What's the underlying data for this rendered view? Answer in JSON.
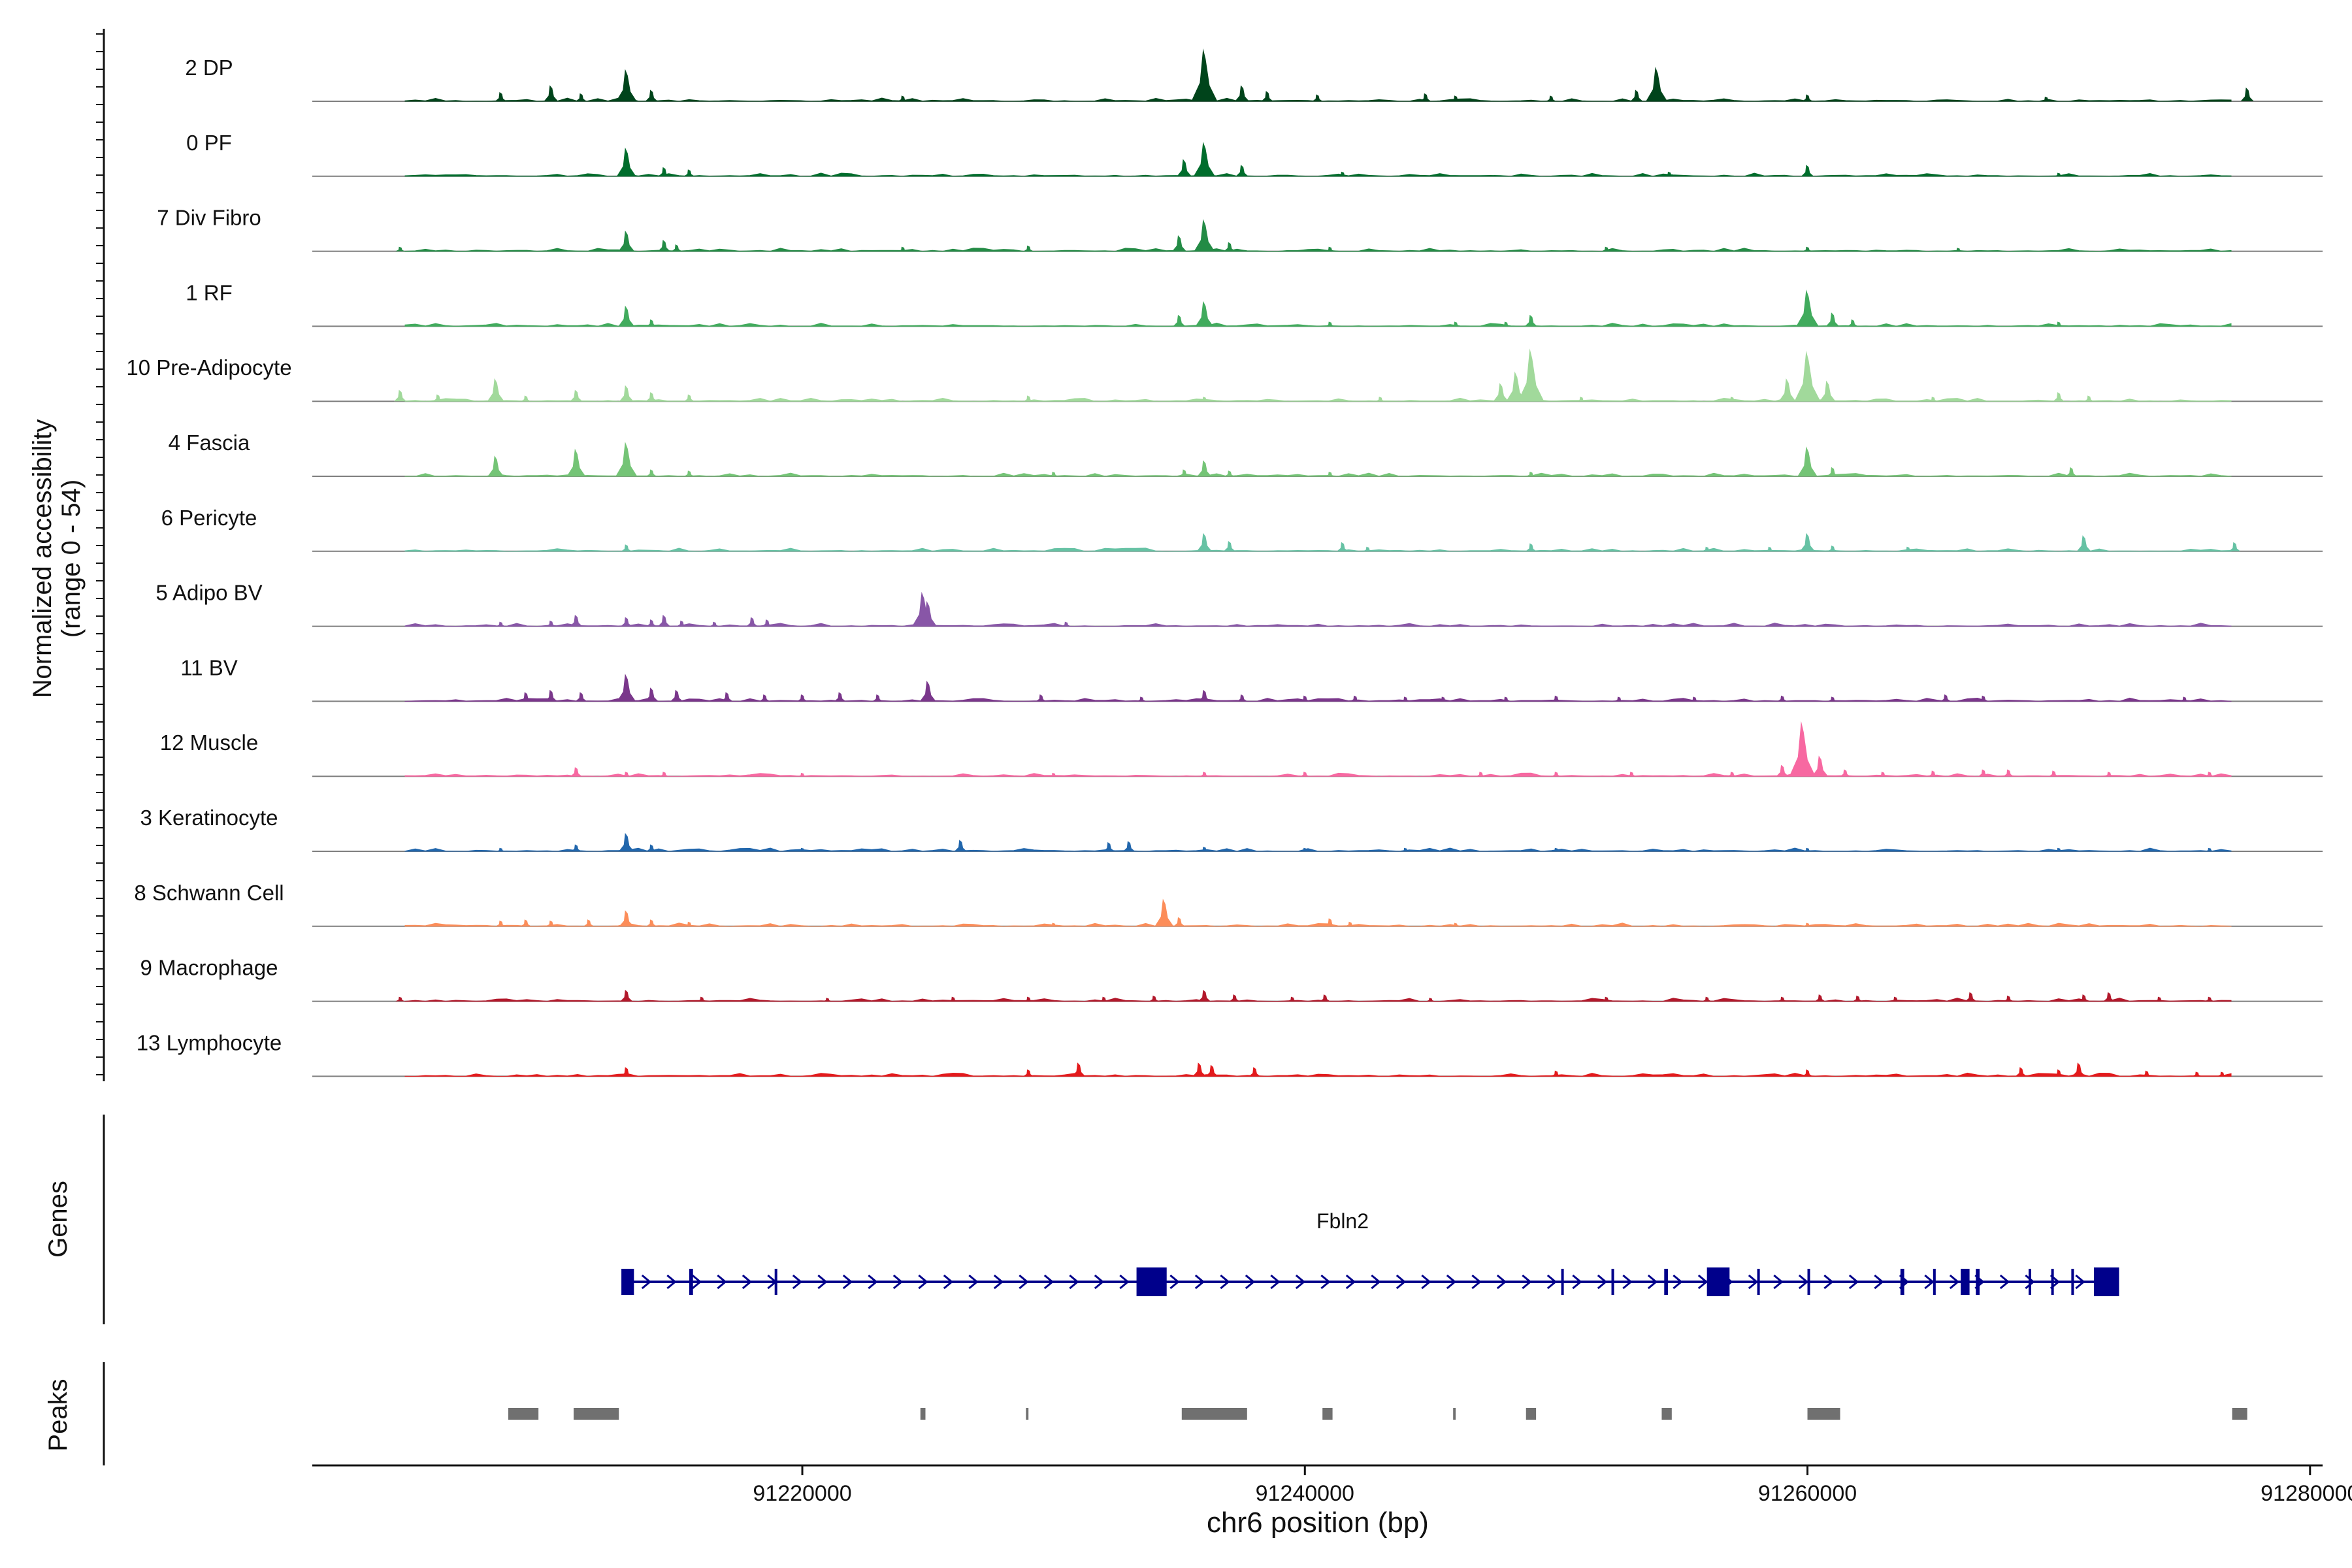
{
  "chart_data": {
    "type": "area",
    "title": "",
    "chromosome": "chr6",
    "xlim": [
      91200500,
      91280500
    ],
    "xlabel": "chr6 position (bp)",
    "x_ticks": [
      91220000,
      91240000,
      91260000,
      91280000
    ],
    "x_tick_labels": [
      "91220000",
      "91240000",
      "91260000",
      "91280000"
    ],
    "ylabel_line1": "Normalized accessibility",
    "ylabel_line2": "(range 0 - 54)",
    "y_range": [
      0,
      54
    ],
    "genes_label": "Genes",
    "peaks_label": "Peaks",
    "tracks": [
      {
        "name": "2 DP",
        "color": "#00441b",
        "peaks": [
          [
            91208000,
            8
          ],
          [
            91210000,
            14
          ],
          [
            91211200,
            7
          ],
          [
            91213000,
            28
          ],
          [
            91214000,
            10
          ],
          [
            91224000,
            5
          ],
          [
            91236000,
            46
          ],
          [
            91237500,
            14
          ],
          [
            91238500,
            9
          ],
          [
            91240500,
            6
          ],
          [
            91244800,
            7
          ],
          [
            91246000,
            5
          ],
          [
            91249800,
            5
          ],
          [
            91254000,
            30
          ],
          [
            91253200,
            10
          ],
          [
            91260000,
            6
          ],
          [
            91269500,
            4
          ],
          [
            91277500,
            12
          ]
        ]
      },
      {
        "name": "0 PF",
        "color": "#006d2c",
        "peaks": [
          [
            91213000,
            25
          ],
          [
            91214500,
            8
          ],
          [
            91215500,
            6
          ],
          [
            91236000,
            30
          ],
          [
            91235200,
            15
          ],
          [
            91237500,
            10
          ],
          [
            91241500,
            4
          ],
          [
            91254500,
            4
          ],
          [
            91260000,
            10
          ],
          [
            91270000,
            3
          ]
        ]
      },
      {
        "name": "7 Div Fibro",
        "color": "#238b45",
        "peaks": [
          [
            91204000,
            4
          ],
          [
            91213000,
            18
          ],
          [
            91214500,
            10
          ],
          [
            91215000,
            6
          ],
          [
            91224000,
            4
          ],
          [
            91229000,
            5
          ],
          [
            91236000,
            28
          ],
          [
            91235000,
            14
          ],
          [
            91237000,
            8
          ],
          [
            91241000,
            4
          ],
          [
            91252000,
            4
          ],
          [
            91260000,
            4
          ],
          [
            91266000,
            3
          ]
        ]
      },
      {
        "name": "1 RF",
        "color": "#41ab5d",
        "peaks": [
          [
            91213000,
            18
          ],
          [
            91214000,
            6
          ],
          [
            91236000,
            22
          ],
          [
            91235000,
            10
          ],
          [
            91241000,
            4
          ],
          [
            91246000,
            4
          ],
          [
            91249000,
            10
          ],
          [
            91248000,
            4
          ],
          [
            91260000,
            32
          ],
          [
            91261000,
            12
          ],
          [
            91261800,
            6
          ],
          [
            91270000,
            4
          ]
        ]
      },
      {
        "name": "10 Pre-Adipocyte",
        "color": "#a1d99b",
        "peaks": [
          [
            91204000,
            10
          ],
          [
            91205500,
            6
          ],
          [
            91207800,
            20
          ],
          [
            91209000,
            5
          ],
          [
            91211000,
            10
          ],
          [
            91213000,
            14
          ],
          [
            91214000,
            8
          ],
          [
            91215500,
            6
          ],
          [
            91229000,
            5
          ],
          [
            91236000,
            4
          ],
          [
            91243000,
            4
          ],
          [
            91247800,
            16
          ],
          [
            91249000,
            46
          ],
          [
            91248400,
            26
          ],
          [
            91251000,
            4
          ],
          [
            91257000,
            4
          ],
          [
            91260000,
            44
          ],
          [
            91259200,
            20
          ],
          [
            91260800,
            18
          ],
          [
            91265000,
            4
          ],
          [
            91270000,
            8
          ],
          [
            91271200,
            5
          ]
        ]
      },
      {
        "name": "4 Fascia",
        "color": "#74c476",
        "peaks": [
          [
            91207800,
            18
          ],
          [
            91211000,
            24
          ],
          [
            91213000,
            30
          ],
          [
            91214000,
            6
          ],
          [
            91215500,
            5
          ],
          [
            91230000,
            4
          ],
          [
            91236000,
            14
          ],
          [
            91235200,
            6
          ],
          [
            91237000,
            5
          ],
          [
            91241000,
            4
          ],
          [
            91249000,
            4
          ],
          [
            91260000,
            26
          ],
          [
            91261000,
            8
          ],
          [
            91270500,
            8
          ]
        ]
      },
      {
        "name": "6 Pericyte",
        "color": "#66c2a4",
        "peaks": [
          [
            91213000,
            6
          ],
          [
            91236000,
            16
          ],
          [
            91237000,
            9
          ],
          [
            91241500,
            8
          ],
          [
            91242500,
            4
          ],
          [
            91249000,
            7
          ],
          [
            91256000,
            4
          ],
          [
            91258500,
            4
          ],
          [
            91260000,
            16
          ],
          [
            91261000,
            5
          ],
          [
            91264000,
            4
          ],
          [
            91271000,
            14
          ],
          [
            91277000,
            8
          ]
        ]
      },
      {
        "name": "5 Adipo BV",
        "color": "#8856a7",
        "peaks": [
          [
            91208000,
            4
          ],
          [
            91210000,
            5
          ],
          [
            91211000,
            10
          ],
          [
            91213000,
            8
          ],
          [
            91214000,
            6
          ],
          [
            91214500,
            10
          ],
          [
            91215200,
            5
          ],
          [
            91216500,
            4
          ],
          [
            91218000,
            8
          ],
          [
            91218600,
            6
          ],
          [
            91225000,
            22
          ],
          [
            91224800,
            30
          ],
          [
            91230500,
            4
          ]
        ]
      },
      {
        "name": "11 BV",
        "color": "#7a378b",
        "peaks": [
          [
            91209000,
            8
          ],
          [
            91210000,
            10
          ],
          [
            91211200,
            8
          ],
          [
            91213000,
            24
          ],
          [
            91214000,
            12
          ],
          [
            91215000,
            10
          ],
          [
            91217000,
            8
          ],
          [
            91218500,
            6
          ],
          [
            91220000,
            6
          ],
          [
            91221500,
            8
          ],
          [
            91223000,
            6
          ],
          [
            91225000,
            18
          ],
          [
            91229500,
            6
          ],
          [
            91233500,
            4
          ],
          [
            91236000,
            10
          ],
          [
            91237500,
            6
          ],
          [
            91240000,
            5
          ],
          [
            91242000,
            5
          ],
          [
            91244000,
            4
          ],
          [
            91245500,
            4
          ],
          [
            91248000,
            4
          ],
          [
            91250000,
            5
          ],
          [
            91252500,
            4
          ],
          [
            91255500,
            4
          ],
          [
            91259000,
            5
          ],
          [
            91261000,
            4
          ],
          [
            91265500,
            6
          ],
          [
            91267000,
            5
          ],
          [
            91275000,
            4
          ]
        ]
      },
      {
        "name": "12 Muscle",
        "color": "#f768a1",
        "peaks": [
          [
            91211000,
            8
          ],
          [
            91213000,
            4
          ],
          [
            91214500,
            4
          ],
          [
            91220000,
            3
          ],
          [
            91230000,
            3
          ],
          [
            91236000,
            4
          ],
          [
            91240000,
            4
          ],
          [
            91247000,
            4
          ],
          [
            91250000,
            4
          ],
          [
            91253000,
            4
          ],
          [
            91257000,
            4
          ],
          [
            91259800,
            48
          ],
          [
            91260500,
            18
          ],
          [
            91259000,
            10
          ],
          [
            91261500,
            6
          ],
          [
            91263000,
            4
          ],
          [
            91265000,
            5
          ],
          [
            91267000,
            6
          ],
          [
            91268000,
            6
          ],
          [
            91269800,
            5
          ],
          [
            91272000,
            4
          ],
          [
            91276000,
            4
          ]
        ]
      },
      {
        "name": "3 Keratinocyte",
        "color": "#2166ac",
        "peaks": [
          [
            91208000,
            3
          ],
          [
            91211000,
            6
          ],
          [
            91213000,
            16
          ],
          [
            91214000,
            6
          ],
          [
            91220000,
            3
          ],
          [
            91226300,
            10
          ],
          [
            91232200,
            8
          ],
          [
            91233000,
            9
          ],
          [
            91236000,
            4
          ],
          [
            91240000,
            3
          ],
          [
            91244000,
            3
          ],
          [
            91250000,
            3
          ],
          [
            91260000,
            3
          ],
          [
            91270000,
            3
          ],
          [
            91276000,
            3
          ]
        ]
      },
      {
        "name": "8 Schwann Cell",
        "color": "#fc8d59",
        "peaks": [
          [
            91208000,
            5
          ],
          [
            91209000,
            6
          ],
          [
            91210000,
            5
          ],
          [
            91211500,
            6
          ],
          [
            91213000,
            14
          ],
          [
            91214000,
            6
          ],
          [
            91215500,
            4
          ],
          [
            91230000,
            3
          ],
          [
            91234400,
            24
          ],
          [
            91235000,
            8
          ],
          [
            91241000,
            7
          ],
          [
            91241800,
            4
          ],
          [
            91246000,
            3
          ],
          [
            91260000,
            3
          ]
        ]
      },
      {
        "name": "9 Macrophage",
        "color": "#b2182b",
        "peaks": [
          [
            91204000,
            4
          ],
          [
            91213000,
            10
          ],
          [
            91216000,
            4
          ],
          [
            91221000,
            3
          ],
          [
            91226000,
            4
          ],
          [
            91229000,
            4
          ],
          [
            91232000,
            4
          ],
          [
            91234000,
            5
          ],
          [
            91236000,
            10
          ],
          [
            91237200,
            6
          ],
          [
            91239500,
            4
          ],
          [
            91240800,
            6
          ],
          [
            91245000,
            3
          ],
          [
            91252000,
            4
          ],
          [
            91256000,
            4
          ],
          [
            91259000,
            4
          ],
          [
            91260500,
            6
          ],
          [
            91262000,
            5
          ],
          [
            91263500,
            4
          ],
          [
            91266500,
            8
          ],
          [
            91268000,
            5
          ],
          [
            91271000,
            6
          ],
          [
            91272000,
            8
          ],
          [
            91274000,
            4
          ],
          [
            91276000,
            4
          ]
        ]
      },
      {
        "name": "13 Lymphocyte",
        "color": "#e31a1c",
        "peaks": [
          [
            91213000,
            8
          ],
          [
            91229000,
            6
          ],
          [
            91231000,
            12
          ],
          [
            91235800,
            12
          ],
          [
            91236300,
            10
          ],
          [
            91238000,
            8
          ],
          [
            91250000,
            5
          ],
          [
            91260000,
            6
          ],
          [
            91268500,
            8
          ],
          [
            91270000,
            6
          ],
          [
            91270800,
            12
          ],
          [
            91273500,
            5
          ],
          [
            91275500,
            4
          ],
          [
            91276500,
            4
          ]
        ]
      }
    ],
    "gene": {
      "name": "Fbln2",
      "color": "#00008b",
      "start": 91213000,
      "end": 91272300,
      "strand": "+",
      "exons": [
        [
          91212800,
          91213300
        ],
        [
          91215500,
          91215650
        ],
        [
          91218900,
          91219000
        ],
        [
          91233300,
          91234500
        ],
        [
          91250200,
          91250300
        ],
        [
          91252200,
          91252300
        ],
        [
          91254300,
          91254450
        ],
        [
          91256000,
          91256900
        ],
        [
          91258000,
          91258100
        ],
        [
          91260000,
          91260100
        ],
        [
          91263700,
          91263850
        ],
        [
          91265000,
          91265100
        ],
        [
          91266100,
          91266450
        ],
        [
          91266700,
          91266850
        ],
        [
          91268800,
          91268900
        ],
        [
          91269700,
          91269800
        ],
        [
          91270500,
          91270600
        ],
        [
          91271400,
          91272400
        ]
      ]
    },
    "peak_regions": [
      [
        91208300,
        91209500
      ],
      [
        91210900,
        91212700
      ],
      [
        91224700,
        91224900
      ],
      [
        91228900,
        91229000
      ],
      [
        91235100,
        91237700
      ],
      [
        91240700,
        91241100
      ],
      [
        91245900,
        91246000
      ],
      [
        91248800,
        91249200
      ],
      [
        91254200,
        91254600
      ],
      [
        91260000,
        91261300
      ],
      [
        91276900,
        91277500
      ]
    ]
  }
}
